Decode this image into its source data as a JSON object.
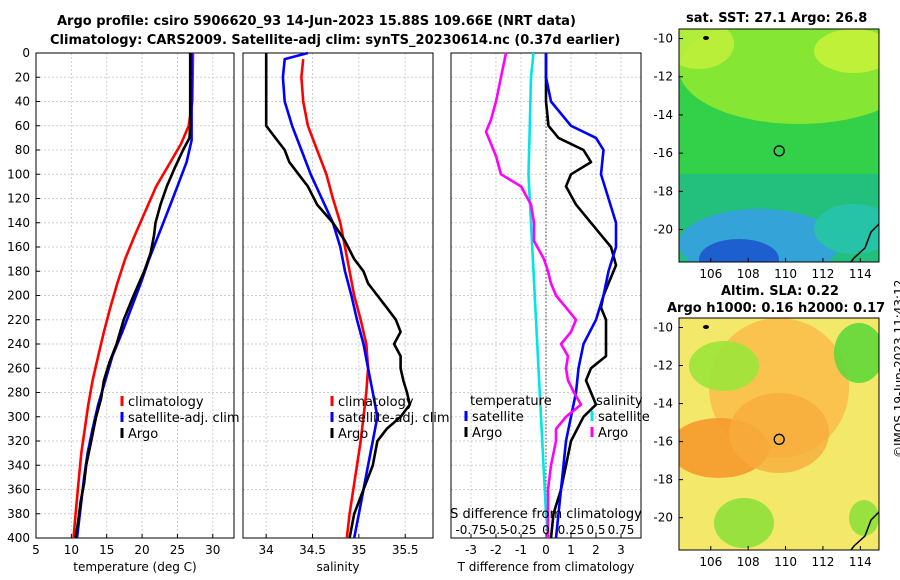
{
  "titles": {
    "line1": "Argo profile: csiro 5906620_93 14-Jun-2023 15.88S 109.66E (NRT data)",
    "line2": "Climatology: CARS2009. Satellite-adj clim: synTS_20230614.nc (0.37d earlier)",
    "sst": "sat. SST: 27.1 Argo: 26.8",
    "sla1": "Altim. SLA: 0.22",
    "sla2": "Argo h1000: 0.16 h2000: 0.17"
  },
  "credit": "©IMOS 19-Jun-2023 11:43:12",
  "colors": {
    "climatology": "#ff0000",
    "satellite": "#0000ff",
    "argo": "#000000",
    "t_satellite": "#00e5e5",
    "s_argo": "#ff00ff"
  },
  "depth_axis": {
    "ticks": [
      0,
      20,
      40,
      60,
      80,
      100,
      120,
      140,
      160,
      180,
      200,
      220,
      240,
      260,
      280,
      300,
      320,
      340,
      360,
      380,
      400
    ],
    "ylim": [
      400,
      0
    ]
  },
  "chart_data": [
    {
      "type": "line",
      "panel": "temperature",
      "xlabel": "temperature (deg C)",
      "xlim": [
        5,
        33
      ],
      "xticks": [
        5,
        10,
        15,
        20,
        25,
        30
      ],
      "legend": [
        "climatology",
        "satellite-adj. clim",
        "Argo"
      ],
      "series": [
        {
          "name": "climatology",
          "color_key": "climatology",
          "points": [
            [
              27.2,
              0
            ],
            [
              27.1,
              40
            ],
            [
              26.6,
              60
            ],
            [
              25.5,
              75
            ],
            [
              24,
              90
            ],
            [
              22,
              110
            ],
            [
              20.5,
              130
            ],
            [
              19,
              150
            ],
            [
              17.6,
              170
            ],
            [
              16.5,
              190
            ],
            [
              15.5,
              210
            ],
            [
              14.6,
              230
            ],
            [
              13.8,
              250
            ],
            [
              13,
              270
            ],
            [
              12.4,
              290
            ],
            [
              11.9,
              310
            ],
            [
              11.4,
              330
            ],
            [
              11,
              355
            ],
            [
              10.6,
              380
            ],
            [
              10.3,
              400
            ]
          ]
        },
        {
          "name": "satellite-adj. clim",
          "color_key": "satellite",
          "points": [
            [
              27,
              0
            ],
            [
              27,
              60
            ],
            [
              27,
              72
            ],
            [
              26.3,
              90
            ],
            [
              25,
              110
            ],
            [
              24,
              125
            ],
            [
              23,
              140
            ],
            [
              22,
              155
            ],
            [
              21,
              170
            ],
            [
              19.8,
              190
            ],
            [
              18.5,
              210
            ],
            [
              17.2,
              230
            ],
            [
              15.8,
              250
            ],
            [
              14.8,
              270
            ],
            [
              13.8,
              290
            ],
            [
              13,
              310
            ],
            [
              12.3,
              330
            ],
            [
              11.8,
              350
            ],
            [
              11.3,
              375
            ],
            [
              10.8,
              400
            ]
          ]
        },
        {
          "name": "Argo",
          "color_key": "argo",
          "points": [
            [
              26.8,
              0
            ],
            [
              26.8,
              60
            ],
            [
              26.7,
              70
            ],
            [
              25.8,
              80
            ],
            [
              24.6,
              95
            ],
            [
              23.5,
              110
            ],
            [
              22.6,
              125
            ],
            [
              21.9,
              140
            ],
            [
              21.7,
              150
            ],
            [
              21.2,
              165
            ],
            [
              20.3,
              180
            ],
            [
              18.8,
              200
            ],
            [
              17.4,
              220
            ],
            [
              16.4,
              240
            ],
            [
              15.4,
              255
            ],
            [
              14.6,
              270
            ],
            [
              14.2,
              285
            ],
            [
              13.5,
              300
            ],
            [
              12.8,
              320
            ],
            [
              12.1,
              340
            ],
            [
              11.8,
              355
            ],
            [
              11.3,
              370
            ],
            [
              11,
              385
            ],
            [
              10.6,
              400
            ]
          ]
        }
      ]
    },
    {
      "type": "line",
      "panel": "salinity",
      "xlabel": "salinity",
      "xlim": [
        33.75,
        35.8
      ],
      "xticks": [
        34,
        34.5,
        35,
        35.5
      ],
      "legend": [
        "climatology",
        "satellite-adj. clim",
        "Argo"
      ],
      "series": [
        {
          "name": "climatology",
          "color_key": "climatology",
          "points": [
            [
              34.4,
              5
            ],
            [
              34.38,
              20
            ],
            [
              34.4,
              40
            ],
            [
              34.45,
              60
            ],
            [
              34.55,
              80
            ],
            [
              34.65,
              100
            ],
            [
              34.72,
              120
            ],
            [
              34.8,
              140
            ],
            [
              34.85,
              160
            ],
            [
              34.9,
              180
            ],
            [
              34.95,
              200
            ],
            [
              35.02,
              220
            ],
            [
              35.08,
              240
            ],
            [
              35.1,
              260
            ],
            [
              35.08,
              280
            ],
            [
              35.05,
              300
            ],
            [
              35.02,
              320
            ],
            [
              34.98,
              340
            ],
            [
              34.94,
              360
            ],
            [
              34.9,
              380
            ],
            [
              34.87,
              400
            ]
          ]
        },
        {
          "name": "satellite-adj. clim",
          "color_key": "satellite",
          "points": [
            [
              34.45,
              0
            ],
            [
              34.2,
              5
            ],
            [
              34.18,
              20
            ],
            [
              34.2,
              40
            ],
            [
              34.28,
              60
            ],
            [
              34.38,
              80
            ],
            [
              34.48,
              100
            ],
            [
              34.6,
              120
            ],
            [
              34.72,
              140
            ],
            [
              34.8,
              160
            ],
            [
              34.85,
              180
            ],
            [
              34.92,
              200
            ],
            [
              34.98,
              220
            ],
            [
              35.05,
              240
            ],
            [
              35.1,
              260
            ],
            [
              35.15,
              280
            ],
            [
              35.2,
              300
            ],
            [
              35.15,
              320
            ],
            [
              35.1,
              340
            ],
            [
              35.05,
              360
            ],
            [
              35,
              380
            ],
            [
              34.95,
              400
            ]
          ]
        },
        {
          "name": "Argo",
          "color_key": "argo",
          "points": [
            [
              34.0,
              0
            ],
            [
              34.0,
              40
            ],
            [
              34.0,
              60
            ],
            [
              34.1,
              70
            ],
            [
              34.2,
              80
            ],
            [
              34.25,
              90
            ],
            [
              34.35,
              100
            ],
            [
              34.45,
              110
            ],
            [
              34.55,
              125
            ],
            [
              34.72,
              140
            ],
            [
              34.85,
              155
            ],
            [
              34.95,
              170
            ],
            [
              35.05,
              180
            ],
            [
              35.1,
              190
            ],
            [
              35.2,
              200
            ],
            [
              35.3,
              210
            ],
            [
              35.4,
              220
            ],
            [
              35.45,
              230
            ],
            [
              35.38,
              240
            ],
            [
              35.45,
              250
            ],
            [
              35.45,
              260
            ],
            [
              35.48,
              270
            ],
            [
              35.52,
              280
            ],
            [
              35.55,
              290
            ],
            [
              35.45,
              300
            ],
            [
              35.3,
              310
            ],
            [
              35.2,
              320
            ],
            [
              35.15,
              340
            ],
            [
              35.05,
              360
            ],
            [
              34.95,
              380
            ],
            [
              34.9,
              400
            ]
          ]
        }
      ]
    },
    {
      "type": "line",
      "panel": "difference",
      "xlabel": "T difference from climatology",
      "xlim": [
        -3.8,
        3.8
      ],
      "xticks": [
        -3,
        -2,
        -1,
        0,
        1,
        2,
        3
      ],
      "s_axis": {
        "label": "S difference from climatology",
        "ticks": [
          "-0.75",
          "-0.5",
          "-0.25",
          "0",
          "0.25",
          "0.5",
          "0.75"
        ],
        "xlim": [
          -0.95,
          0.95
        ]
      },
      "legend_left": [
        "temperature",
        "satellite",
        "Argo"
      ],
      "legend_right": [
        "salinity",
        "satellite",
        "Argo"
      ],
      "series": [
        {
          "name": "T satellite",
          "color_key": "t_satellite",
          "points": [
            [
              -0.5,
              0
            ],
            [
              -0.6,
              20
            ],
            [
              -0.65,
              60
            ],
            [
              -0.7,
              100
            ],
            [
              -0.6,
              140
            ],
            [
              -0.5,
              180
            ],
            [
              -0.4,
              220
            ],
            [
              -0.3,
              260
            ],
            [
              -0.2,
              300
            ],
            [
              -0.1,
              340
            ],
            [
              0,
              380
            ],
            [
              0.1,
              400
            ]
          ]
        },
        {
          "name": "T Argo",
          "color_key": "argo",
          "points": [
            [
              0,
              0
            ],
            [
              0,
              40
            ],
            [
              0.1,
              60
            ],
            [
              0.5,
              70
            ],
            [
              1.5,
              80
            ],
            [
              1.8,
              90
            ],
            [
              1,
              100
            ],
            [
              0.8,
              110
            ],
            [
              1.2,
              125
            ],
            [
              1.8,
              140
            ],
            [
              2.2,
              150
            ],
            [
              2.6,
              160
            ],
            [
              2.8,
              175
            ],
            [
              2.5,
              190
            ],
            [
              2.3,
              200
            ],
            [
              2.2,
              210
            ],
            [
              2.4,
              220
            ],
            [
              2.4,
              240
            ],
            [
              2.4,
              250
            ],
            [
              1.8,
              260
            ],
            [
              1.6,
              270
            ],
            [
              1.8,
              280
            ],
            [
              2,
              290
            ],
            [
              1.5,
              300
            ],
            [
              1,
              320
            ],
            [
              0.8,
              340
            ],
            [
              0.6,
              360
            ],
            [
              0.3,
              380
            ],
            [
              0.2,
              400
            ]
          ]
        },
        {
          "name": "T satellite (blue)",
          "color_key": "satellite",
          "points": [
            [
              0,
              0
            ],
            [
              0,
              20
            ],
            [
              0.2,
              40
            ],
            [
              1,
              60
            ],
            [
              2,
              70
            ],
            [
              2.3,
              80
            ],
            [
              2.2,
              100
            ],
            [
              2.5,
              120
            ],
            [
              2.8,
              140
            ],
            [
              2.8,
              160
            ],
            [
              2.5,
              180
            ],
            [
              2.3,
              200
            ],
            [
              2,
              220
            ],
            [
              1.5,
              240
            ],
            [
              1.3,
              260
            ],
            [
              1.2,
              280
            ],
            [
              1,
              300
            ],
            [
              0.8,
              320
            ],
            [
              0.7,
              340
            ],
            [
              0.6,
              360
            ],
            [
              0.5,
              380
            ],
            [
              0.4,
              400
            ]
          ]
        },
        {
          "name": "S Argo",
          "color_key": "s_argo",
          "points": [
            [
              -0.4,
              0
            ],
            [
              -0.45,
              20
            ],
            [
              -0.5,
              40
            ],
            [
              -0.55,
              55
            ],
            [
              -0.6,
              65
            ],
            [
              -0.55,
              75
            ],
            [
              -0.5,
              85
            ],
            [
              -0.45,
              100
            ],
            [
              -0.25,
              110
            ],
            [
              -0.15,
              125
            ],
            [
              -0.12,
              140
            ],
            [
              -0.12,
              155
            ],
            [
              -0.02,
              170
            ],
            [
              0.02,
              180
            ],
            [
              0.05,
              190
            ],
            [
              0.1,
              200
            ],
            [
              0.2,
              210
            ],
            [
              0.3,
              220
            ],
            [
              0.25,
              230
            ],
            [
              0.15,
              240
            ],
            [
              0.22,
              250
            ],
            [
              0.2,
              260
            ],
            [
              0.22,
              270
            ],
            [
              0.28,
              280
            ],
            [
              0.35,
              290
            ],
            [
              0.2,
              300
            ],
            [
              0.1,
              310
            ],
            [
              0.1,
              320
            ],
            [
              0.05,
              340
            ],
            [
              0.02,
              360
            ],
            [
              0.02,
              380
            ],
            [
              0.02,
              400
            ]
          ]
        }
      ]
    }
  ],
  "maps": {
    "sst": {
      "y_ticks": [
        "-10",
        "-12",
        "-14",
        "-16",
        "-18",
        "-20"
      ],
      "x_ticks": [
        "106",
        "108",
        "110",
        "112",
        "114"
      ],
      "float_marker": [
        109.66,
        -15.88
      ]
    },
    "sla": {
      "y_ticks": [
        "-10",
        "-12",
        "-14",
        "-16",
        "-18",
        "-20"
      ],
      "x_ticks": [
        "106",
        "108",
        "110",
        "112",
        "114"
      ],
      "float_marker": [
        109.66,
        -15.88
      ]
    }
  }
}
